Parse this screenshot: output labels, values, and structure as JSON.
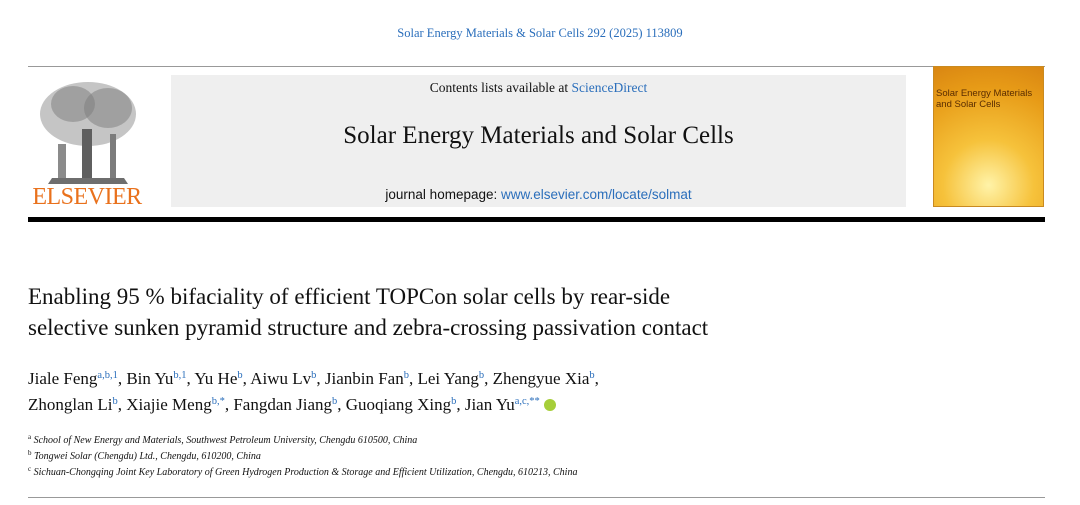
{
  "citation": "Solar Energy Materials & Solar Cells 292 (2025) 113809",
  "header": {
    "contents_prefix": "Contents lists available at",
    "contents_link": "ScienceDirect",
    "journal": "Solar Energy Materials and Solar Cells",
    "homepage_prefix": "journal homepage:",
    "homepage_link": "www.elsevier.com/locate/solmat",
    "publisher": "ELSEVIER",
    "cover_title": "Solar Energy Materials and Solar Cells"
  },
  "title_lines": [
    "Enabling 95 % bifaciality of efficient TOPCon solar cells by rear-side",
    "selective sunken pyramid structure and zebra-crossing passivation contact"
  ],
  "separator": ",",
  "author_lines": [
    [
      {
        "name": "Jiale Feng",
        "sup": "a,b,1"
      },
      {
        "name": "Bin Yu",
        "sup": "b,1"
      },
      {
        "name": "Yu He",
        "sup": "b"
      },
      {
        "name": "Aiwu Lv",
        "sup": "b"
      },
      {
        "name": "Jianbin Fan",
        "sup": "b"
      },
      {
        "name": "Lei Yang",
        "sup": "b"
      },
      {
        "name": "Zhengyue Xia",
        "sup": "b"
      }
    ],
    [
      {
        "name": "Zhonglan Li",
        "sup": "b"
      },
      {
        "name": "Xiajie Meng",
        "sup": "b,*"
      },
      {
        "name": "Fangdan Jiang",
        "sup": "b"
      },
      {
        "name": "Guoqiang Xing",
        "sup": "b"
      },
      {
        "name": "Jian Yu",
        "sup": "a,c,**"
      }
    ]
  ],
  "affiliations": [
    {
      "label": "a",
      "text": "School of New Energy and Materials, Southwest Petroleum University, Chengdu 610500, China"
    },
    {
      "label": "b",
      "text": "Tongwei Solar (Chengdu) Ltd., Chengdu, 610200, China"
    },
    {
      "label": "c",
      "text": "Sichuan-Chongqing Joint Key Laboratory of Green Hydrogen Production & Storage and Efficient Utilization, Chengdu, 610213, China"
    }
  ]
}
